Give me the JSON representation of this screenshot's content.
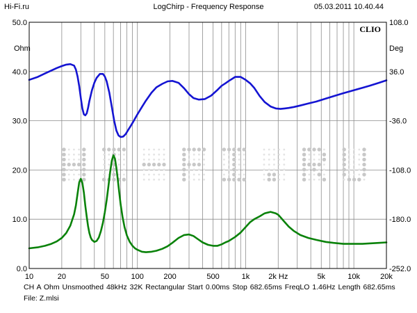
{
  "header": {
    "site": "Hi-Fi.ru",
    "title": "LogChirp - Frequency Response",
    "datetime": "05.03.2011 10.40.44",
    "brand": "CLIO"
  },
  "watermark": "HI-FI.RU",
  "footer": {
    "line1": "CH A   Ohm   Unsmoothed   48kHz   32K   Rectangular   Start 0.00ms   Stop 682.65ms   FreqLO 1.46Hz   Length 682.65ms",
    "line2": "File: Z.mlsi"
  },
  "chart_data": {
    "type": "line",
    "title": "LogChirp - Frequency Response",
    "xscale": "log",
    "xlim": [
      10,
      20000
    ],
    "x_ticks": [
      {
        "value": 10,
        "label": "10"
      },
      {
        "value": 20,
        "label": "20"
      },
      {
        "value": 50,
        "label": "50"
      },
      {
        "value": 100,
        "label": "100"
      },
      {
        "value": 200,
        "label": "200"
      },
      {
        "value": 500,
        "label": "500"
      },
      {
        "value": 1000,
        "label": "1k"
      },
      {
        "value": 2000,
        "label": "2k Hz"
      },
      {
        "value": 5000,
        "label": "5k"
      },
      {
        "value": 10000,
        "label": "10k"
      },
      {
        "value": 20000,
        "label": "20k"
      }
    ],
    "y_left": {
      "unit": "Ohm",
      "lim": [
        0,
        50
      ],
      "ticks": [
        {
          "value": 0,
          "label": "0.0"
        },
        {
          "value": 10,
          "label": "10.0"
        },
        {
          "value": 20,
          "label": "20.0"
        },
        {
          "value": 30,
          "label": "30.0"
        },
        {
          "value": 40,
          "label": "40.0"
        },
        {
          "value": 50,
          "label": "50.0"
        }
      ]
    },
    "y_right": {
      "unit": "Deg",
      "lim": [
        -252,
        108
      ],
      "ticks": [
        {
          "value": 108,
          "label": "108.0"
        },
        {
          "value": 36,
          "label": "36.0"
        },
        {
          "value": -36,
          "label": "-36.0"
        },
        {
          "value": -108,
          "label": "-108.0"
        },
        {
          "value": -180,
          "label": "-180.0"
        },
        {
          "value": -252,
          "label": "-252.0"
        }
      ]
    },
    "grid": true,
    "series": [
      {
        "color": "#1414d2",
        "axis": "left",
        "x": [
          10,
          12,
          14,
          16,
          18,
          20,
          22,
          24,
          26,
          27,
          28,
          29,
          30,
          31,
          32,
          33,
          34,
          35,
          36,
          38,
          40,
          42,
          45,
          48,
          50,
          52,
          55,
          58,
          61,
          64,
          67,
          70,
          74,
          78,
          82,
          87,
          92,
          100,
          110,
          120,
          135,
          150,
          170,
          190,
          210,
          240,
          270,
          300,
          330,
          370,
          420,
          480,
          540,
          600,
          650,
          700,
          750,
          800,
          900,
          1000,
          1100,
          1200,
          1350,
          1500,
          1700,
          1900,
          2100,
          2300,
          2500,
          2800,
          3200,
          3800,
          4500,
          5500,
          6500,
          8000,
          10000,
          12000,
          14000,
          17000,
          20000
        ],
        "y": [
          38.3,
          38.9,
          39.6,
          40.2,
          40.7,
          41.1,
          41.4,
          41.5,
          41.2,
          40.4,
          39.0,
          37.0,
          34.6,
          32.5,
          31.3,
          31.1,
          31.5,
          32.6,
          34.0,
          36.2,
          37.7,
          38.7,
          39.5,
          39.5,
          39.0,
          38.0,
          35.7,
          32.8,
          30.0,
          28.0,
          27.0,
          26.7,
          26.8,
          27.3,
          28.1,
          29.0,
          29.9,
          31.3,
          32.8,
          34.1,
          35.7,
          36.8,
          37.5,
          38.0,
          38.1,
          37.7,
          36.6,
          35.4,
          34.6,
          34.3,
          34.4,
          35.1,
          36.1,
          37.1,
          37.6,
          38.1,
          38.5,
          38.9,
          38.9,
          38.3,
          37.6,
          36.7,
          35.0,
          33.8,
          32.9,
          32.5,
          32.4,
          32.5,
          32.6,
          32.8,
          33.1,
          33.5,
          33.9,
          34.5,
          35.0,
          35.6,
          36.2,
          36.7,
          37.1,
          37.7,
          38.2
        ]
      },
      {
        "color": "#0a820a",
        "axis": "left",
        "x": [
          10,
          12,
          14,
          16,
          18,
          20,
          22,
          24,
          26,
          27,
          28,
          29,
          30,
          31,
          32,
          33,
          34,
          35,
          36,
          37,
          38,
          40,
          42,
          44,
          46,
          48,
          50,
          52,
          54,
          56,
          58,
          60,
          62,
          64,
          66,
          68,
          70,
          73,
          76,
          80,
          85,
          90,
          95,
          100,
          110,
          120,
          135,
          150,
          170,
          190,
          210,
          240,
          270,
          300,
          330,
          360,
          400,
          450,
          500,
          550,
          600,
          650,
          700,
          800,
          900,
          1000,
          1100,
          1200,
          1350,
          1500,
          1700,
          1900,
          2000,
          2100,
          2300,
          2500,
          2800,
          3200,
          3800,
          4500,
          5500,
          6500,
          8000,
          10000,
          12000,
          14000,
          17000,
          20000
        ],
        "y": [
          4.1,
          4.3,
          4.6,
          5.0,
          5.5,
          6.2,
          7.2,
          8.7,
          11.0,
          12.8,
          15.2,
          17.5,
          18.2,
          17.4,
          15.4,
          12.8,
          10.5,
          8.6,
          7.2,
          6.3,
          5.8,
          5.4,
          5.6,
          6.3,
          7.6,
          9.3,
          11.4,
          13.9,
          16.7,
          19.6,
          21.9,
          23.0,
          22.3,
          20.4,
          17.9,
          15.4,
          13.0,
          10.4,
          8.4,
          6.7,
          5.4,
          4.6,
          4.1,
          3.8,
          3.4,
          3.3,
          3.4,
          3.6,
          4.0,
          4.5,
          5.2,
          6.2,
          6.8,
          6.9,
          6.6,
          6.0,
          5.3,
          4.8,
          4.6,
          4.6,
          4.9,
          5.3,
          5.6,
          6.4,
          7.3,
          8.4,
          9.4,
          10.0,
          10.6,
          11.2,
          11.5,
          11.2,
          10.9,
          10.4,
          9.4,
          8.5,
          7.6,
          6.8,
          6.2,
          5.8,
          5.4,
          5.2,
          5.0,
          5.0,
          5.0,
          5.1,
          5.2,
          5.3
        ]
      }
    ]
  }
}
